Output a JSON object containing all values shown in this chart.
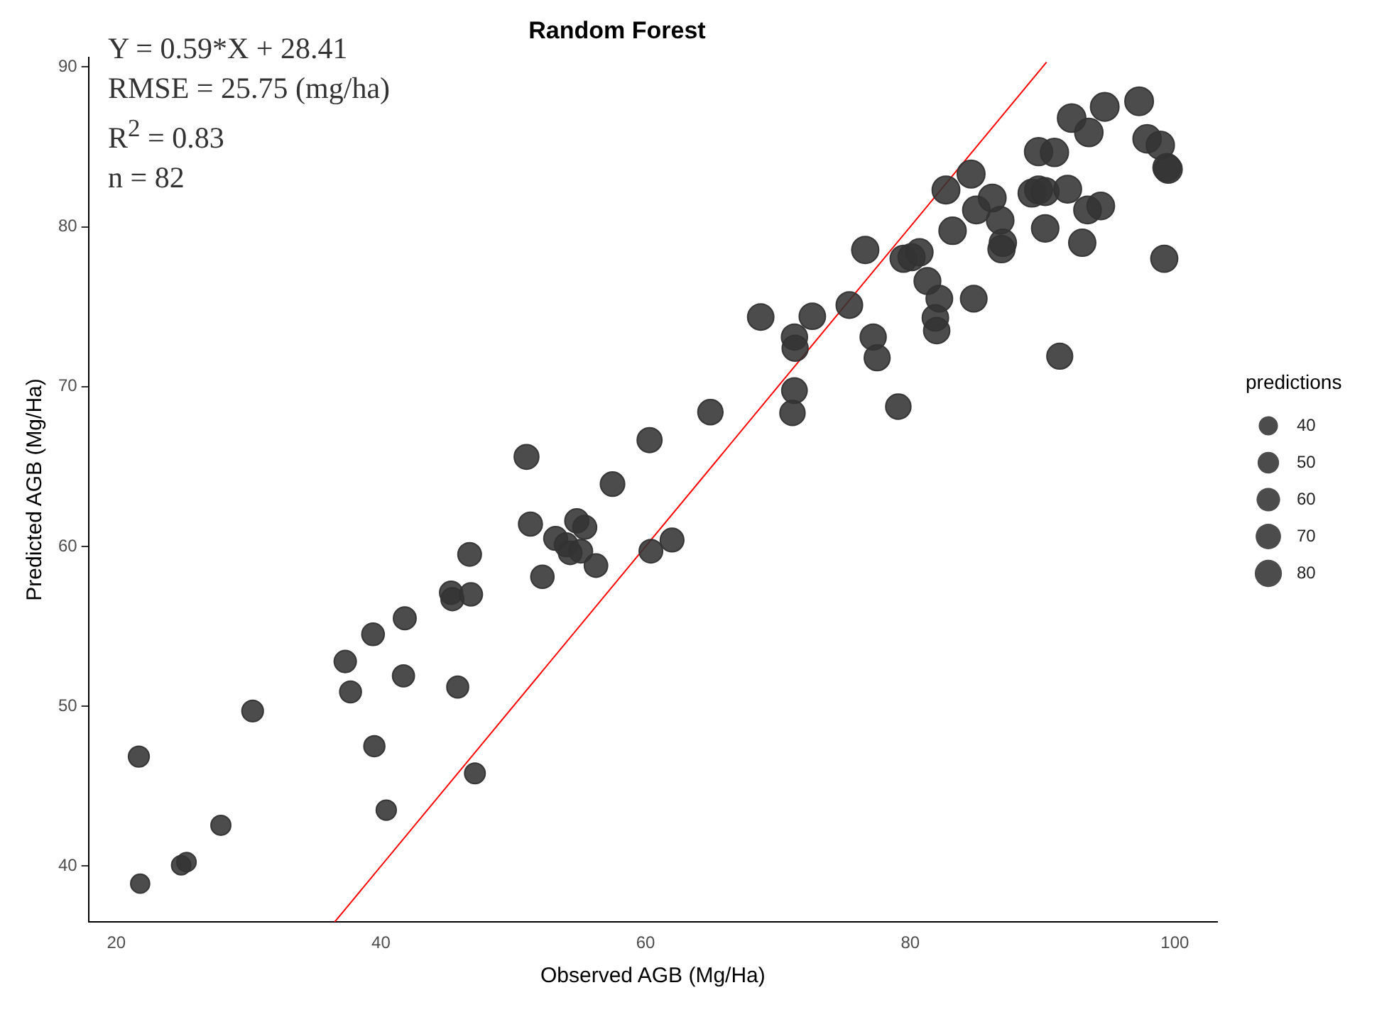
{
  "chart_data": {
    "type": "bubble",
    "title": "Random Forest",
    "xlabel": "Observed AGB (Mg/Ha)",
    "ylabel": "Predicted AGB (Mg/Ha)",
    "legend_title": "predictions",
    "grid": false,
    "annotations": [
      "Y = 0.59*X + 28.41",
      "RMSE = 25.75 (mg/ha)",
      "R$^{2}$ = 0.83",
      "n = 82"
    ],
    "xlim": [
      17.9,
      103.2
    ],
    "xticks": [
      20,
      40,
      60,
      80,
      100
    ],
    "ylim": [
      36.5,
      90.6
    ],
    "yticks": [
      40,
      50,
      60,
      70,
      80,
      90
    ],
    "size_legend": [
      40,
      50,
      60,
      70,
      80
    ],
    "series": [
      {
        "color": "#333333",
        "x": [
          21.7,
          21.8,
          24.9,
          25.3,
          27.9,
          30.3,
          37.3,
          37.7,
          39.4,
          39.5,
          40.4,
          41.8,
          41.7,
          45.3,
          45.4,
          46.8,
          45.8,
          46.7,
          47.1,
          51.0,
          51.3,
          52.2,
          53.2,
          54.0,
          54.3,
          54.8,
          55.4,
          55.1,
          56.25,
          57.5,
          60.3,
          60.4,
          62.0,
          64.9,
          68.7,
          71.25,
          71.3,
          71.25,
          71.1,
          72.6,
          75.4,
          76.6,
          77.2,
          77.5,
          79.1,
          79.5,
          80.1,
          80.7,
          81.3,
          82.2,
          81.9,
          82.0,
          82.7,
          84.8,
          83.2,
          84.6,
          85.0,
          86.2,
          86.8,
          87.0,
          86.9,
          89.2,
          89.7,
          90.2,
          89.7,
          90.9,
          91.9,
          90.2,
          91.3,
          92.2,
          93.5,
          94.7,
          93.4,
          94.4,
          93.0,
          97.3,
          97.9,
          98.9,
          99.4,
          99.5,
          99.2
        ],
        "values": [
          46.85,
          38.9,
          40.05,
          40.25,
          42.55,
          49.7,
          52.8,
          50.9,
          54.5,
          47.5,
          43.5,
          55.5,
          51.9,
          57.1,
          56.7,
          57.0,
          51.2,
          59.5,
          45.8,
          65.6,
          61.4,
          58.1,
          60.5,
          60.1,
          59.6,
          61.6,
          61.2,
          59.7,
          58.8,
          63.9,
          66.65,
          59.7,
          60.4,
          68.4,
          74.35,
          73.1,
          72.4,
          69.75,
          68.35,
          74.4,
          75.1,
          78.55,
          73.1,
          71.8,
          68.75,
          78.0,
          78.1,
          78.4,
          76.6,
          75.5,
          74.3,
          73.5,
          82.3,
          75.5,
          79.75,
          83.3,
          81.05,
          81.8,
          80.4,
          79.0,
          78.6,
          82.1,
          82.3,
          82.2,
          84.7,
          84.65,
          82.35,
          79.9,
          71.9,
          86.8,
          85.9,
          87.5,
          81.05,
          81.3,
          79.0,
          87.85,
          85.5,
          85.1,
          83.7,
          83.6,
          78.0
        ],
        "sizes": [
          46.85,
          38.9,
          40.05,
          40.25,
          42.55,
          49.7,
          52.8,
          50.9,
          54.5,
          47.5,
          43.5,
          55.5,
          51.9,
          57.1,
          56.7,
          57.0,
          51.2,
          59.5,
          45.8,
          65.6,
          61.4,
          58.1,
          60.5,
          60.1,
          59.6,
          61.6,
          61.2,
          59.7,
          58.8,
          63.9,
          66.65,
          59.7,
          60.4,
          68.4,
          74.35,
          73.1,
          72.4,
          69.75,
          68.35,
          74.4,
          75.1,
          78.55,
          73.1,
          71.8,
          68.75,
          78.0,
          78.1,
          78.4,
          76.6,
          75.5,
          74.3,
          73.5,
          82.3,
          75.5,
          79.75,
          83.3,
          81.05,
          81.8,
          80.4,
          79.0,
          78.6,
          82.1,
          82.3,
          82.2,
          84.7,
          84.65,
          82.35,
          79.9,
          71.9,
          86.8,
          85.9,
          87.5,
          81.05,
          81.3,
          79.0,
          87.85,
          85.5,
          85.1,
          83.7,
          83.6,
          78.0
        ]
      },
      {
        "type": "line",
        "color": "#ff0000",
        "x": [
          36.5,
          90.3
        ],
        "values": [
          36.5,
          90.3
        ]
      }
    ]
  }
}
